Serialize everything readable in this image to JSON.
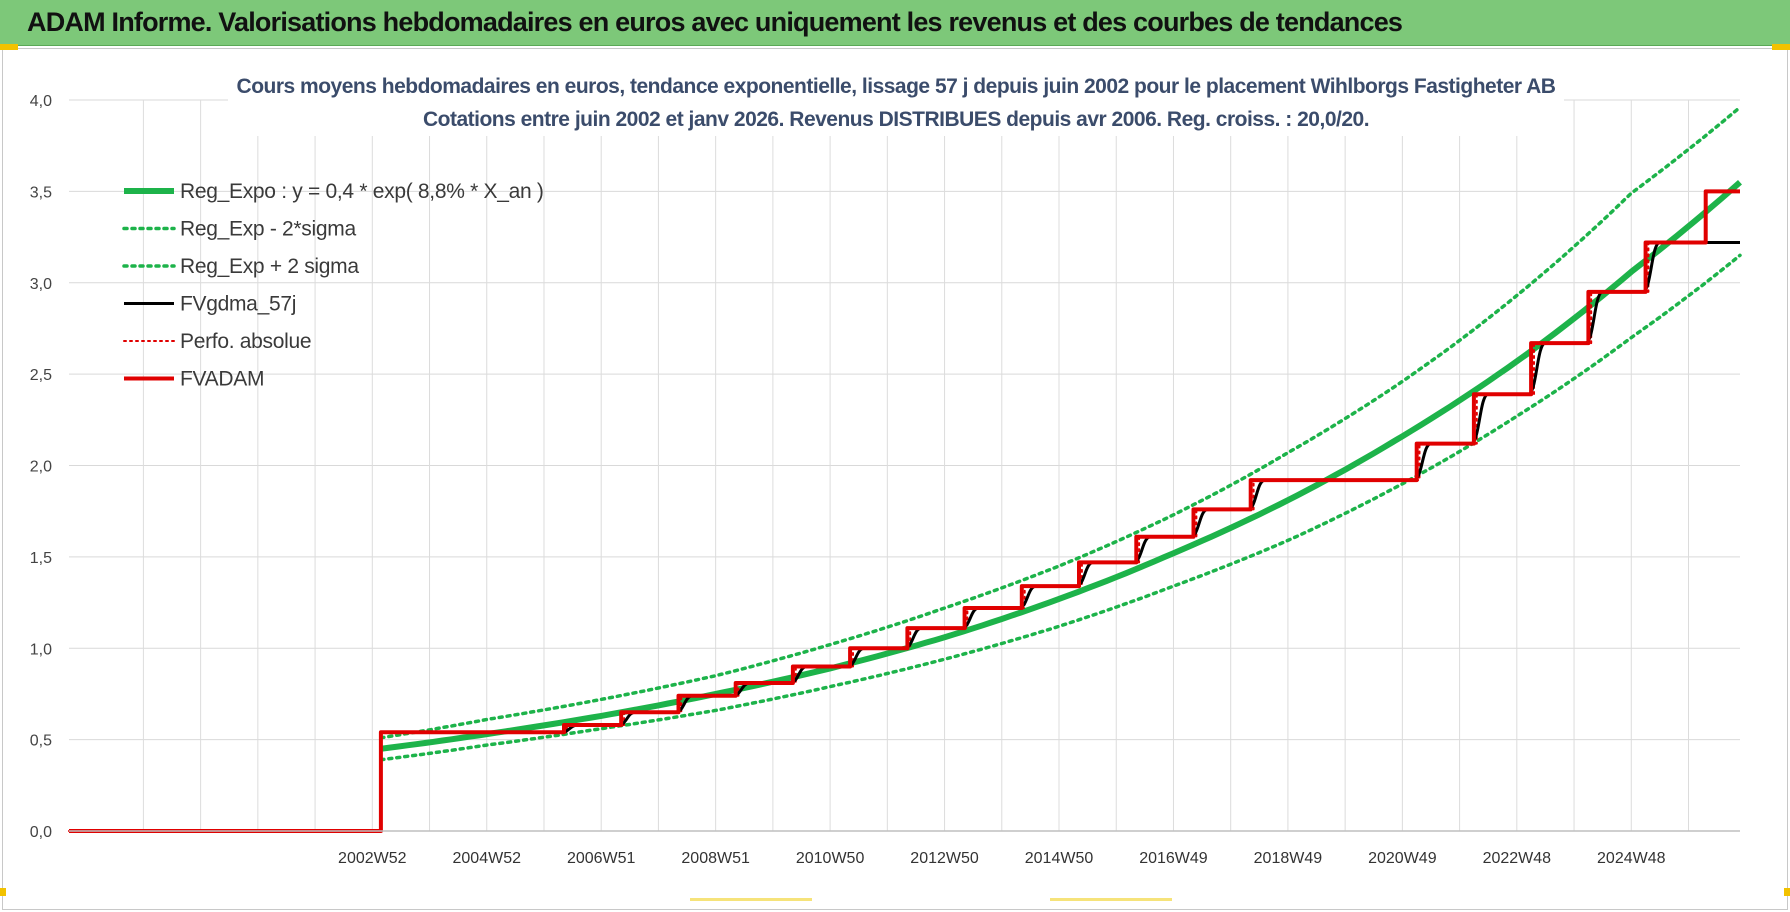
{
  "header": {
    "title": "ADAM Informe. Valorisations hebdomadaires en euros avec uniquement les revenus et des courbes de tendances"
  },
  "colors": {
    "banner": "#7dc879",
    "trend": "#1db34a",
    "band": "#1db34a",
    "smoothed": "#000000",
    "perfo": "#e00000",
    "fvadam": "#e00000",
    "title": "#3b4c6b"
  },
  "chart_data": {
    "type": "line",
    "title": "Cours moyens hebdomadaires en euros, tendance exponentielle, lissage 57 j depuis juin 2002 pour le placement Wihlborgs Fastigheter AB",
    "subtitle": "Cotations entre juin 2002 et janv 2026. Revenus DISTRIBUES depuis avr 2006. Reg. croiss. : 20,0/20.",
    "xlabel": "",
    "ylabel": "",
    "ylim": [
      0,
      4.0
    ],
    "xlim": [
      1997.7,
      2026.9
    ],
    "yticks": [
      "0,0",
      "0,5",
      "1,0",
      "1,5",
      "2,0",
      "2,5",
      "3,0",
      "3,5",
      "4,0"
    ],
    "xticks": [
      {
        "x": 2003.0,
        "label": "2002W52"
      },
      {
        "x": 2005.0,
        "label": "2004W52"
      },
      {
        "x": 2007.0,
        "label": "2006W51"
      },
      {
        "x": 2009.0,
        "label": "2008W51"
      },
      {
        "x": 2011.0,
        "label": "2010W50"
      },
      {
        "x": 2013.0,
        "label": "2012W50"
      },
      {
        "x": 2015.0,
        "label": "2014W50"
      },
      {
        "x": 2017.0,
        "label": "2016W49"
      },
      {
        "x": 2019.0,
        "label": "2018W49"
      },
      {
        "x": 2021.0,
        "label": "2020W49"
      },
      {
        "x": 2023.0,
        "label": "2022W48"
      },
      {
        "x": 2025.0,
        "label": "2024W48"
      }
    ],
    "grid": true,
    "legend_position": "top-left",
    "series": [
      {
        "name": "Reg_Expo : y = 0,4 * exp( 8,8% *  X_an )",
        "style": "solid-thick-green",
        "x": [
          2003.15,
          2005.0,
          2007.0,
          2009.0,
          2011.0,
          2013.0,
          2015.0,
          2017.0,
          2019.0,
          2021.0,
          2023.0,
          2025.0,
          2026.9
        ],
        "values": [
          0.45,
          0.53,
          0.63,
          0.75,
          0.89,
          1.06,
          1.27,
          1.52,
          1.81,
          2.16,
          2.57,
          3.06,
          3.55
        ]
      },
      {
        "name": "Reg_Exp - 2*sigma",
        "style": "dotted-green",
        "x": [
          2003.15,
          2005.0,
          2007.0,
          2009.0,
          2011.0,
          2013.0,
          2015.0,
          2017.0,
          2019.0,
          2021.0,
          2023.0,
          2025.0,
          2026.9
        ],
        "values": [
          0.39,
          0.47,
          0.56,
          0.66,
          0.79,
          0.94,
          1.12,
          1.34,
          1.59,
          1.9,
          2.27,
          2.7,
          3.15
        ]
      },
      {
        "name": "Reg_Exp + 2 sigma",
        "style": "dotted-green",
        "x": [
          2003.15,
          2005.0,
          2007.0,
          2009.0,
          2011.0,
          2013.0,
          2015.0,
          2017.0,
          2019.0,
          2021.0,
          2023.0,
          2025.0,
          2026.9
        ],
        "values": [
          0.51,
          0.61,
          0.72,
          0.85,
          1.02,
          1.22,
          1.45,
          1.73,
          2.07,
          2.46,
          2.93,
          3.49,
          3.96
        ]
      },
      {
        "name": "FVgdma_57j",
        "style": "solid-black",
        "x": [
          1997.7,
          2003.15,
          2003.15,
          2006.3,
          2006.6,
          2007.3,
          2007.6,
          2008.3,
          2008.6,
          2009.3,
          2009.6,
          2010.3,
          2010.6,
          2011.3,
          2011.6,
          2012.3,
          2012.6,
          2013.3,
          2013.6,
          2014.3,
          2014.6,
          2015.3,
          2015.6,
          2016.3,
          2016.6,
          2017.3,
          2017.6,
          2018.3,
          2018.6,
          2021.2,
          2021.5,
          2022.2,
          2022.5,
          2023.2,
          2023.5,
          2024.2,
          2024.5,
          2025.2,
          2025.5,
          2026.9
        ],
        "values": [
          0.0,
          0.0,
          0.54,
          0.54,
          0.58,
          0.58,
          0.65,
          0.65,
          0.74,
          0.74,
          0.81,
          0.81,
          0.9,
          0.9,
          1.0,
          1.0,
          1.11,
          1.11,
          1.22,
          1.22,
          1.34,
          1.34,
          1.47,
          1.47,
          1.61,
          1.61,
          1.76,
          1.76,
          1.92,
          1.92,
          2.12,
          2.12,
          2.39,
          2.39,
          2.67,
          2.67,
          2.95,
          2.95,
          3.22,
          3.22
        ]
      },
      {
        "name": "Perfo. absolue",
        "style": "dotted-red",
        "x": [
          1997.7,
          2003.15,
          2003.15,
          2006.4,
          2006.4,
          2007.4,
          2007.4,
          2008.4,
          2008.4,
          2009.4,
          2009.4,
          2010.4,
          2010.4,
          2011.4,
          2011.4,
          2012.4,
          2012.4,
          2013.4,
          2013.4,
          2014.4,
          2014.4,
          2015.4,
          2015.4,
          2016.4,
          2016.4,
          2017.4,
          2017.4,
          2018.4,
          2018.4,
          2021.3,
          2021.3,
          2022.3,
          2022.3,
          2023.3,
          2023.3,
          2024.3,
          2024.3,
          2025.3,
          2025.3,
          2026.9
        ],
        "values": [
          0.0,
          0.0,
          0.54,
          0.54,
          0.58,
          0.58,
          0.65,
          0.65,
          0.74,
          0.74,
          0.81,
          0.81,
          0.9,
          0.9,
          1.0,
          1.0,
          1.11,
          1.11,
          1.22,
          1.22,
          1.34,
          1.34,
          1.47,
          1.47,
          1.61,
          1.61,
          1.76,
          1.76,
          1.92,
          1.92,
          2.12,
          2.12,
          2.39,
          2.39,
          2.67,
          2.67,
          2.95,
          2.95,
          3.22,
          3.22
        ]
      },
      {
        "name": "FVADAM",
        "style": "solid-thick-red",
        "x": [
          1997.7,
          2003.15,
          2003.15,
          2006.35,
          2006.35,
          2007.35,
          2007.35,
          2008.35,
          2008.35,
          2009.35,
          2009.35,
          2010.35,
          2010.35,
          2011.35,
          2011.35,
          2012.35,
          2012.35,
          2013.35,
          2013.35,
          2014.35,
          2014.35,
          2015.35,
          2015.35,
          2016.35,
          2016.35,
          2017.35,
          2017.35,
          2018.35,
          2018.35,
          2021.25,
          2021.25,
          2022.25,
          2022.25,
          2023.25,
          2023.25,
          2024.25,
          2024.25,
          2025.25,
          2025.25,
          2026.3,
          2026.3,
          2026.9
        ],
        "values": [
          0.0,
          0.0,
          0.54,
          0.54,
          0.58,
          0.58,
          0.65,
          0.65,
          0.74,
          0.74,
          0.81,
          0.81,
          0.9,
          0.9,
          1.0,
          1.0,
          1.11,
          1.11,
          1.22,
          1.22,
          1.34,
          1.34,
          1.47,
          1.47,
          1.61,
          1.61,
          1.76,
          1.76,
          1.92,
          1.92,
          2.12,
          2.12,
          2.39,
          2.39,
          2.67,
          2.67,
          2.95,
          2.95,
          3.22,
          3.22,
          3.5,
          3.5
        ]
      }
    ]
  }
}
